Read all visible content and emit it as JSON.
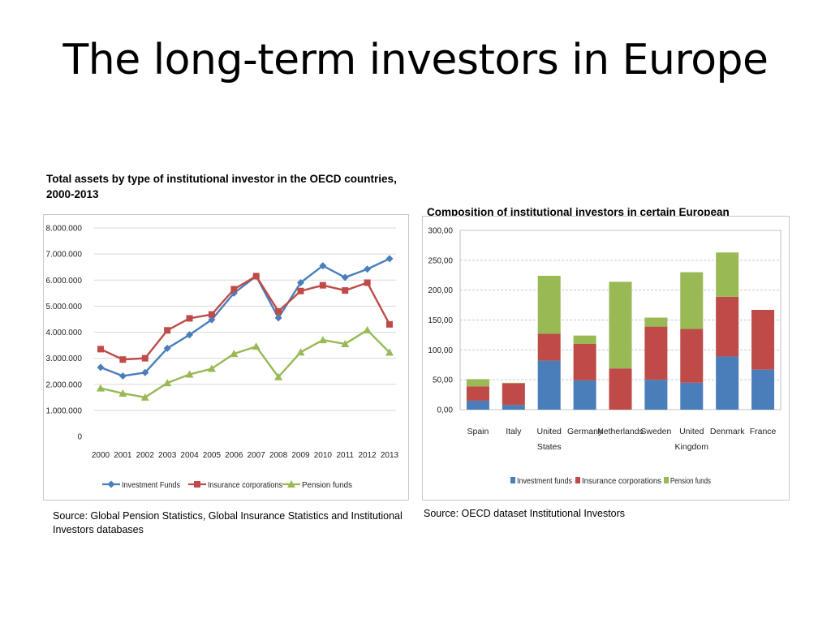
{
  "slide": {
    "title": "The long-term investors in Europe"
  },
  "left_caption": "Total assets by type of institutional investor in the OECD countries, 2000-2013",
  "right_caption": "Composition of institutional investors in certain European",
  "left_source": "Source: Global Pension Statistics, Global Insurance Statistics and Institutional Investors databases",
  "right_source": "Source: OECD dataset Institutional Investors",
  "chart_data": [
    {
      "type": "line",
      "x": [
        "2000",
        "2001",
        "2002",
        "2003",
        "2004",
        "2005",
        "2006",
        "2007",
        "2008",
        "2009",
        "2010",
        "2011",
        "2012",
        "2013"
      ],
      "ylim": [
        0,
        8000000
      ],
      "yticks": [
        0,
        1000000,
        2000000,
        3000000,
        4000000,
        5000000,
        6000000,
        7000000,
        8000000
      ],
      "ytick_labels": [
        "0",
        "1.000.000",
        "2.000.000",
        "3.000.000",
        "4.000.000",
        "5.000.000",
        "6.000.000",
        "7.000.000",
        "8.000.000"
      ],
      "grid": "horizontal",
      "legend_position": "bottom",
      "series": [
        {
          "name": "Investment Funds",
          "color": "#4a7ebb",
          "marker": "diamond",
          "values": [
            2650000,
            2320000,
            2450000,
            3380000,
            3900000,
            4480000,
            5500000,
            6150000,
            4550000,
            5900000,
            6550000,
            6100000,
            6420000,
            6820000
          ]
        },
        {
          "name": "Insurance corporations",
          "color": "#be4b48",
          "marker": "square",
          "values": [
            3350000,
            2950000,
            3000000,
            4070000,
            4530000,
            4680000,
            5650000,
            6150000,
            4800000,
            5580000,
            5800000,
            5600000,
            5900000,
            4300000
          ]
        },
        {
          "name": "Pension funds",
          "color": "#98b954",
          "marker": "triangle",
          "values": [
            1850000,
            1650000,
            1500000,
            2050000,
            2380000,
            2600000,
            3170000,
            3450000,
            2280000,
            3230000,
            3700000,
            3550000,
            4080000,
            3220000
          ]
        }
      ]
    },
    {
      "type": "bar",
      "stacked": true,
      "categories": [
        "Spain",
        "Italy",
        "United States",
        "Germany",
        "Netherlands",
        "Sweden",
        "United Kingdom",
        "Denmark",
        "France"
      ],
      "category_lines": [
        [
          "Spain"
        ],
        [
          "Italy"
        ],
        [
          "United",
          "States"
        ],
        [
          "Germany"
        ],
        [
          "Netherlands"
        ],
        [
          "Sweden"
        ],
        [
          "United",
          "Kingdom"
        ],
        [
          "Denmark"
        ],
        [
          "France"
        ]
      ],
      "ylim": [
        0,
        300
      ],
      "yticks": [
        0,
        50,
        100,
        150,
        200,
        250,
        300
      ],
      "ytick_labels": [
        "0,00",
        "50,00",
        "100,00",
        "150,00",
        "200,00",
        "250,00",
        "300,00"
      ],
      "grid": "horizontal",
      "legend_position": "bottom",
      "series": [
        {
          "name": "Investment funds",
          "color": "#4a7ebb",
          "values": [
            15,
            8,
            82,
            49,
            0,
            50,
            45,
            89,
            67
          ]
        },
        {
          "name": "Insurance corporations",
          "color": "#be4b48",
          "values": [
            24,
            36,
            45,
            61,
            69,
            89,
            90,
            100,
            100
          ]
        },
        {
          "name": "Pension funds",
          "color": "#98b954",
          "values": [
            12,
            1,
            97,
            14,
            145,
            15,
            95,
            74,
            0
          ]
        }
      ]
    }
  ]
}
